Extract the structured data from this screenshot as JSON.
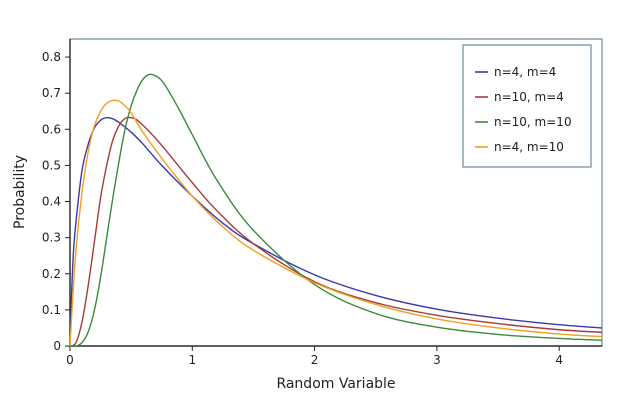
{
  "chart_data": {
    "type": "line",
    "title": "",
    "xlabel": "Random Variable",
    "ylabel": "Probability",
    "xlim": [
      0,
      4.35
    ],
    "ylim": [
      0,
      0.85
    ],
    "x_ticks": [
      0,
      1,
      2,
      3,
      4
    ],
    "y_ticks": [
      0,
      0.1,
      0.2,
      0.3,
      0.4,
      0.5,
      0.6,
      0.7,
      0.8
    ],
    "x_tick_labels": [
      "0",
      "1",
      "2",
      "3",
      "4"
    ],
    "y_tick_labels": [
      "0",
      "0.1",
      "0.2",
      "0.3",
      "0.4",
      "0.5",
      "0.6",
      "0.7",
      "0.8"
    ],
    "grid": false,
    "legend_position": "top-right",
    "series": [
      {
        "name": "n=4, m=4",
        "color": "#3a3aa8",
        "x": [
          0,
          0.01,
          0.03,
          0.06,
          0.1,
          0.15,
          0.2,
          0.25,
          0.3,
          0.35,
          0.4,
          0.5,
          0.6,
          0.75,
          1.0,
          1.25,
          1.5,
          2.0,
          2.5,
          3.0,
          3.5,
          4.0,
          4.35
        ],
        "y": [
          0,
          0.12,
          0.27,
          0.38,
          0.49,
          0.56,
          0.604,
          0.625,
          0.632,
          0.629,
          0.619,
          0.592,
          0.558,
          0.5,
          0.415,
          0.34,
          0.283,
          0.197,
          0.14,
          0.102,
          0.077,
          0.059,
          0.05
        ]
      },
      {
        "name": "n=10, m=4",
        "color": "#a83a3a",
        "x": [
          0,
          0.05,
          0.1,
          0.15,
          0.2,
          0.25,
          0.3,
          0.35,
          0.4,
          0.45,
          0.5,
          0.55,
          0.6,
          0.7,
          0.8,
          1.0,
          1.2,
          1.5,
          2.0,
          2.5,
          3.0,
          3.5,
          4.0,
          4.35
        ],
        "y": [
          0,
          0.01,
          0.07,
          0.17,
          0.29,
          0.41,
          0.5,
          0.57,
          0.61,
          0.63,
          0.632,
          0.625,
          0.61,
          0.575,
          0.535,
          0.452,
          0.375,
          0.283,
          0.178,
          0.12,
          0.085,
          0.062,
          0.045,
          0.038
        ]
      },
      {
        "name": "n=10, m=10",
        "color": "#3a8a3a",
        "x": [
          0,
          0.05,
          0.1,
          0.15,
          0.2,
          0.25,
          0.3,
          0.35,
          0.4,
          0.45,
          0.5,
          0.55,
          0.6,
          0.65,
          0.7,
          0.75,
          0.8,
          0.9,
          1.0,
          1.2,
          1.5,
          2.0,
          2.5,
          3.0,
          3.5,
          4.0,
          4.35
        ],
        "y": [
          0,
          0.0,
          0.01,
          0.04,
          0.1,
          0.19,
          0.3,
          0.41,
          0.51,
          0.6,
          0.665,
          0.71,
          0.74,
          0.752,
          0.748,
          0.735,
          0.71,
          0.65,
          0.585,
          0.46,
          0.32,
          0.17,
          0.09,
          0.052,
          0.032,
          0.021,
          0.016
        ]
      },
      {
        "name": "n=4, m=10",
        "color": "#f0a020",
        "x": [
          0,
          0.02,
          0.05,
          0.1,
          0.15,
          0.2,
          0.25,
          0.3,
          0.35,
          0.4,
          0.45,
          0.5,
          0.6,
          0.75,
          1.0,
          1.25,
          1.5,
          2.0,
          2.5,
          3.0,
          3.5,
          4.0,
          4.35
        ],
        "y": [
          0,
          0.12,
          0.27,
          0.43,
          0.54,
          0.61,
          0.65,
          0.672,
          0.68,
          0.678,
          0.665,
          0.645,
          0.59,
          0.52,
          0.415,
          0.33,
          0.265,
          0.175,
          0.115,
          0.075,
          0.05,
          0.033,
          0.026
        ]
      }
    ]
  }
}
